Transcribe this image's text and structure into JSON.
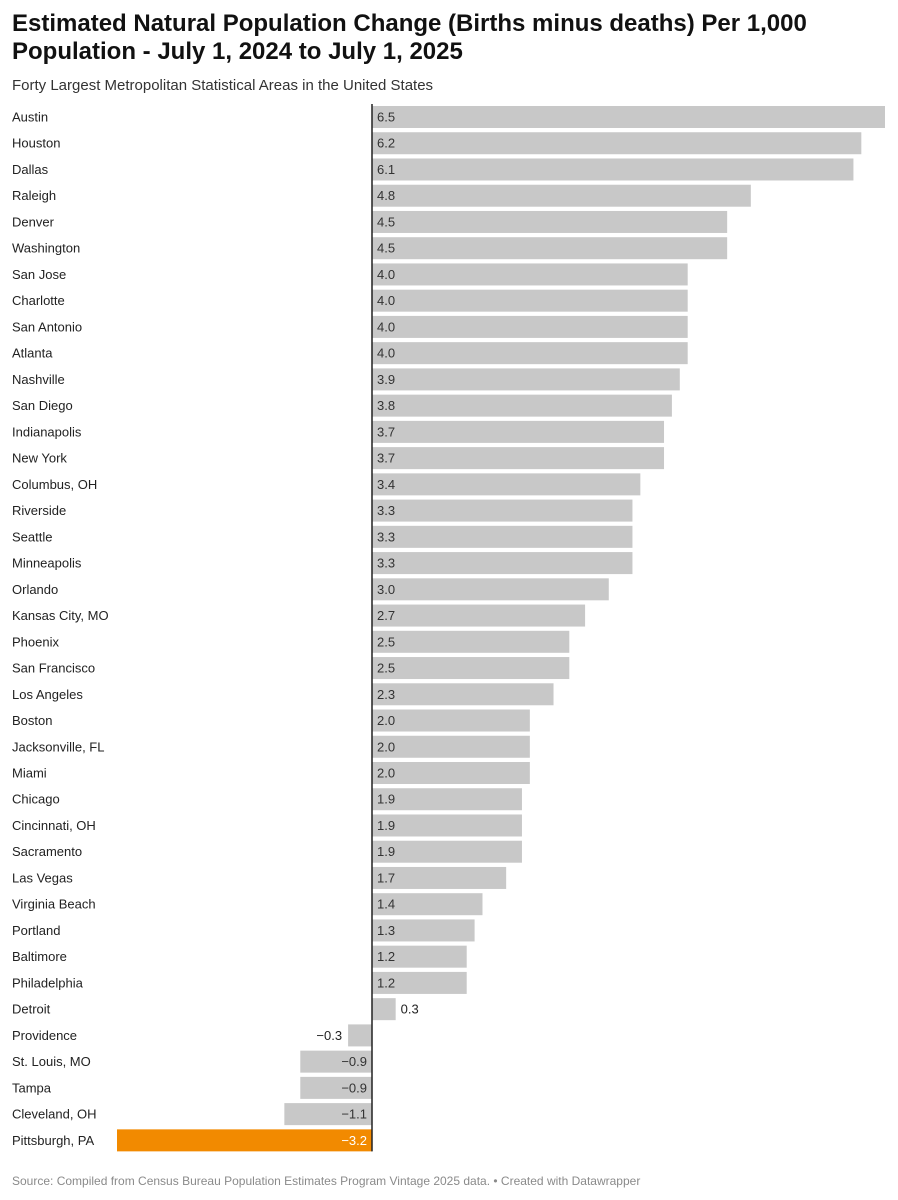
{
  "header": {
    "title": "Estimated Natural Population Change (Births minus deaths) Per 1,000 Population - July 1, 2024 to July 1, 2025",
    "subtitle": "Forty Largest Metropolitan Statistical Areas in the United States"
  },
  "footer": {
    "source": "Source: Compiled from Census Bureau Population Estimates Program Vintage 2025 data. • Created with Datawrapper"
  },
  "colors": {
    "bar": "#c8c8c8",
    "highlight": "#f28a00",
    "axis": "#222222"
  },
  "chart_data": {
    "type": "bar",
    "orientation": "horizontal",
    "title": "Estimated Natural Population Change (Births minus deaths) Per 1,000 Population - July 1, 2024 to July 1, 2025",
    "subtitle": "Forty Largest Metropolitan Statistical Areas in the United States",
    "xlim": [
      -3.2,
      6.5
    ],
    "grid": false,
    "legend": "none",
    "highlight": [
      "Pittsburgh, PA"
    ],
    "categories": [
      "Austin",
      "Houston",
      "Dallas",
      "Raleigh",
      "Denver",
      "Washington",
      "San Jose",
      "Charlotte",
      "San Antonio",
      "Atlanta",
      "Nashville",
      "San Diego",
      "Indianapolis",
      "New York",
      "Columbus, OH",
      "Riverside",
      "Seattle",
      "Minneapolis",
      "Orlando",
      "Kansas City, MO",
      "Phoenix",
      "San Francisco",
      "Los Angeles",
      "Boston",
      "Jacksonville, FL",
      "Miami",
      "Chicago",
      "Cincinnati, OH",
      "Sacramento",
      "Las Vegas",
      "Virginia Beach",
      "Portland",
      "Baltimore",
      "Philadelphia",
      "Detroit",
      "Providence",
      "St. Louis, MO",
      "Tampa",
      "Cleveland, OH",
      "Pittsburgh, PA"
    ],
    "values": [
      6.5,
      6.2,
      6.1,
      4.8,
      4.5,
      4.5,
      4.0,
      4.0,
      4.0,
      4.0,
      3.9,
      3.8,
      3.7,
      3.7,
      3.4,
      3.3,
      3.3,
      3.3,
      3.0,
      2.7,
      2.5,
      2.5,
      2.3,
      2.0,
      2.0,
      2.0,
      1.9,
      1.9,
      1.9,
      1.7,
      1.4,
      1.3,
      1.2,
      1.2,
      0.3,
      -0.3,
      -0.9,
      -0.9,
      -1.1,
      -3.2
    ],
    "value_labels": [
      "6.5",
      "6.2",
      "6.1",
      "4.8",
      "4.5",
      "4.5",
      "4.0",
      "4.0",
      "4.0",
      "4.0",
      "3.9",
      "3.8",
      "3.7",
      "3.7",
      "3.4",
      "3.3",
      "3.3",
      "3.3",
      "3.0",
      "2.7",
      "2.5",
      "2.5",
      "2.3",
      "2.0",
      "2.0",
      "2.0",
      "1.9",
      "1.9",
      "1.9",
      "1.7",
      "1.4",
      "1.3",
      "1.2",
      "1.2",
      "0.3",
      "−0.3",
      "−0.9",
      "−0.9",
      "−1.1",
      "−3.2"
    ]
  }
}
